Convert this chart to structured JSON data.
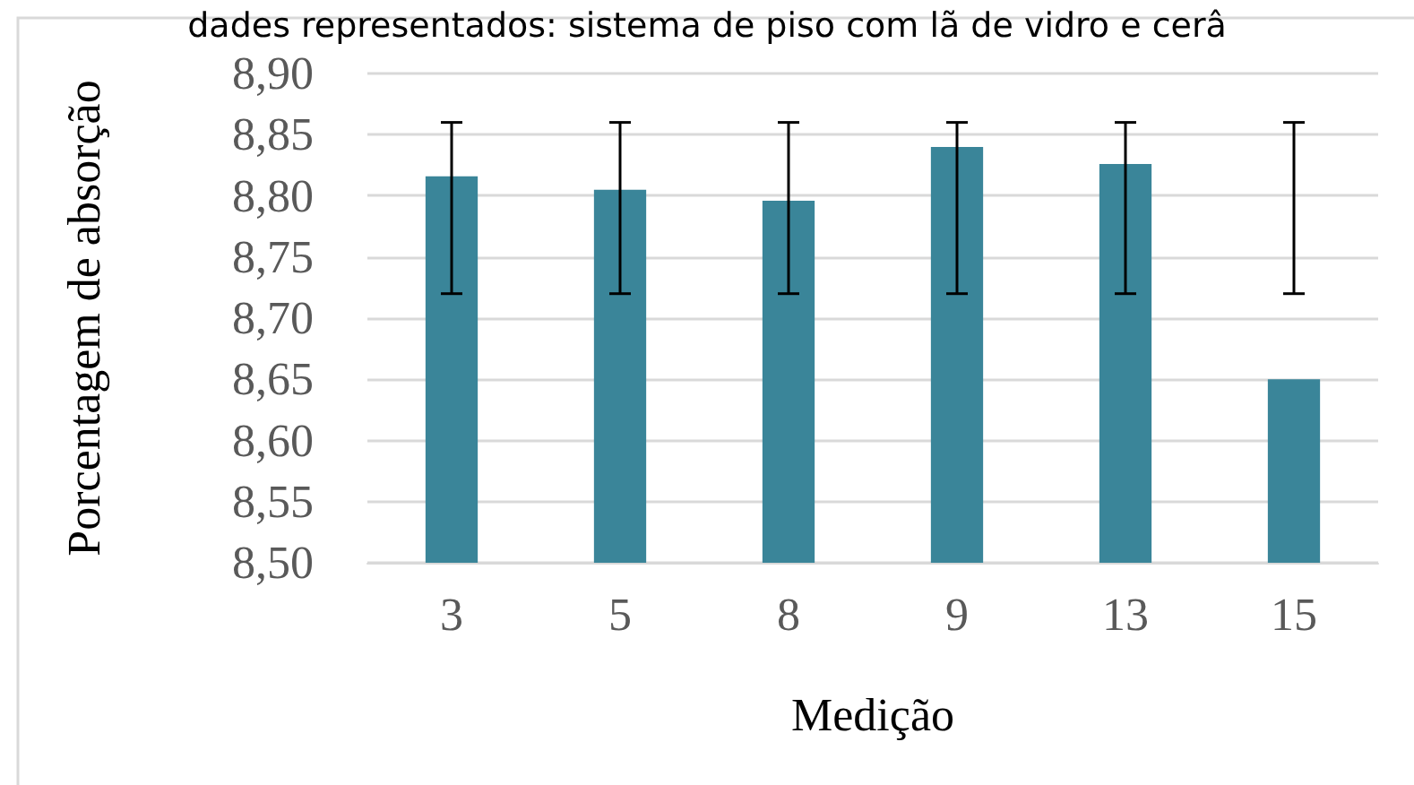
{
  "chart_data": {
    "type": "bar",
    "title": "dades representados: sistema de piso com lã de vidro e cerâ",
    "xlabel": "Medição",
    "ylabel": "Porcentagem de absorção",
    "categories": [
      "3",
      "5",
      "8",
      "9",
      "13",
      "15"
    ],
    "values": [
      8.816,
      8.805,
      8.796,
      8.84,
      8.826,
      8.65
    ],
    "errors": [
      [
        8.72,
        8.86
      ],
      [
        8.72,
        8.86
      ],
      [
        8.72,
        8.86
      ],
      [
        8.72,
        8.86
      ],
      [
        8.72,
        8.86
      ],
      [
        8.72,
        8.86
      ]
    ],
    "color": "#3a8599",
    "ylim": [
      8.5,
      8.9
    ],
    "yticks": [
      {
        "value": 8.5,
        "label": "8,50"
      },
      {
        "value": 8.55,
        "label": "8,55"
      },
      {
        "value": 8.6,
        "label": "8,60"
      },
      {
        "value": 8.65,
        "label": "8,65"
      },
      {
        "value": 8.7,
        "label": "8,70"
      },
      {
        "value": 8.75,
        "label": "8,75"
      },
      {
        "value": 8.8,
        "label": "8,80"
      },
      {
        "value": 8.85,
        "label": "8,85"
      },
      {
        "value": 8.9,
        "label": "8,90"
      }
    ],
    "grid": "y"
  }
}
